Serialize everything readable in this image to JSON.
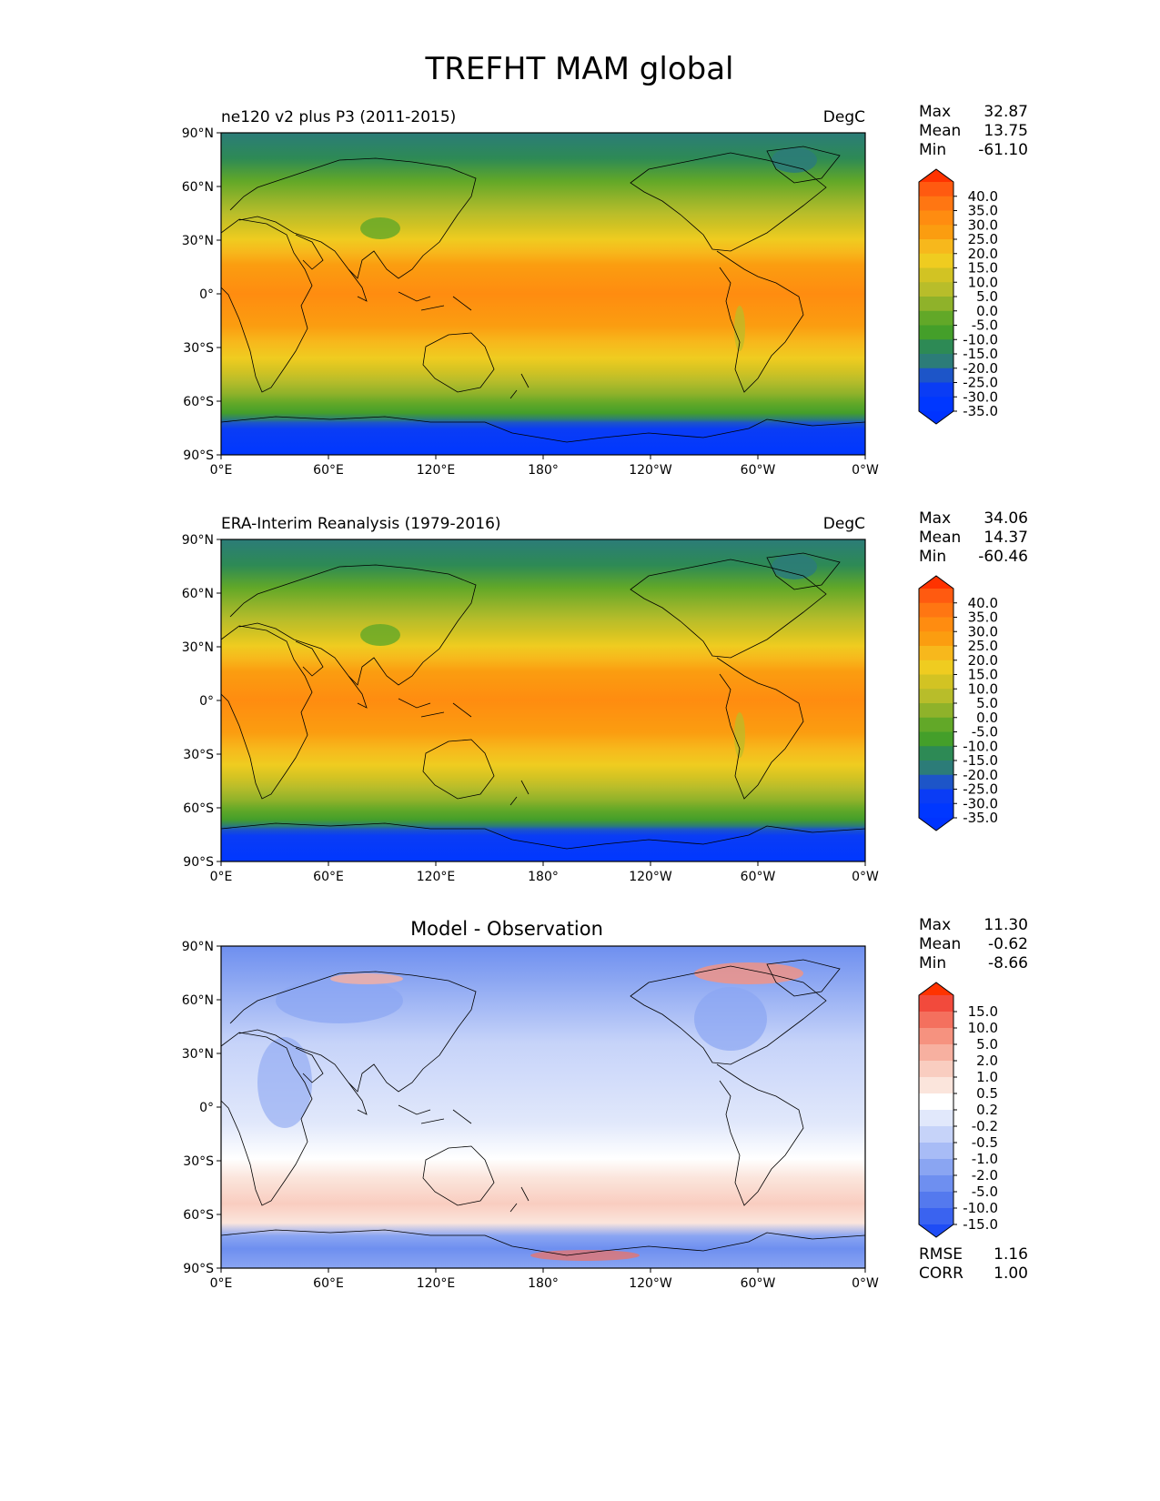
{
  "title": "TREFHT MAM global",
  "panels": [
    {
      "name": "model",
      "left_title": "ne120 v2 plus P3 (2011-2015)",
      "center_title": "",
      "units": "DegC",
      "stats": [
        {
          "label": "Max",
          "value": "32.87"
        },
        {
          "label": "Mean",
          "value": "13.75"
        },
        {
          "label": "Min",
          "value": "-61.10"
        }
      ],
      "colorbar": "abs"
    },
    {
      "name": "observation",
      "left_title": "ERA-Interim Reanalysis (1979-2016)",
      "center_title": "",
      "units": "DegC",
      "stats": [
        {
          "label": "Max",
          "value": "34.06"
        },
        {
          "label": "Mean",
          "value": "14.37"
        },
        {
          "label": "Min",
          "value": "-60.46"
        }
      ],
      "colorbar": "abs"
    },
    {
      "name": "difference",
      "left_title": "",
      "center_title": "Model - Observation",
      "units": "",
      "stats": [
        {
          "label": "Max",
          "value": "11.30"
        },
        {
          "label": "Mean",
          "value": "-0.62"
        },
        {
          "label": "Min",
          "value": "-8.66"
        }
      ],
      "colorbar": "diff",
      "metrics": [
        {
          "label": "RMSE",
          "value": "1.16"
        },
        {
          "label": "CORR",
          "value": "1.00"
        }
      ]
    }
  ],
  "lat_ticks": [
    "90°N",
    "60°N",
    "30°N",
    "0°",
    "30°S",
    "60°S",
    "90°S"
  ],
  "lon_ticks": [
    "0°E",
    "60°E",
    "120°E",
    "180°",
    "120°W",
    "60°W",
    "0°W"
  ],
  "colorbars": {
    "abs": {
      "labels": [
        "40.0",
        "35.0",
        "30.0",
        "25.0",
        "20.0",
        "15.0",
        "10.0",
        "5.0",
        "0.0",
        "-5.0",
        "-10.0",
        "-15.0",
        "-20.0",
        "-25.0",
        "-30.0",
        "-35.0"
      ],
      "colors": [
        "#ff3300",
        "#ff5a10",
        "#ff7612",
        "#ff8c10",
        "#fb9d10",
        "#f7b81c",
        "#efcc20",
        "#d2c323",
        "#b8bd2a",
        "#8fb22a",
        "#62a828",
        "#449f2a",
        "#2d8a55",
        "#2c7c78",
        "#1d55c8",
        "#0a3cf5",
        "#0037ff",
        "#0033ff"
      ]
    },
    "diff": {
      "labels": [
        "15.0",
        "10.0",
        "5.0",
        "2.0",
        "1.0",
        "0.5",
        "0.2",
        "-0.2",
        "-0.5",
        "-1.0",
        "-2.0",
        "-5.0",
        "-10.0",
        "-15.0"
      ],
      "colors": [
        "#ff3300",
        "#f24a3c",
        "#f4705e",
        "#f6927f",
        "#f7b0a0",
        "#f9cdc0",
        "#fbe5dc",
        "#ffffff",
        "#e1e8fb",
        "#c6d3f9",
        "#a8bcf6",
        "#8aa5f2",
        "#6e8ff0",
        "#5479ee",
        "#3a63f0",
        "#1e4cf5"
      ]
    }
  },
  "field_colors": {
    "abs_zonal": [
      "#0a3cf5",
      "#0a3cf5",
      "#1d55c8",
      "#2c7c78",
      "#449f2a",
      "#62a828",
      "#8fb22a",
      "#b8bd2a",
      "#d2c323",
      "#efcc20",
      "#f7b81c",
      "#fb9d10",
      "#ff8c10",
      "#fb9d10",
      "#f7b81c",
      "#efcc20",
      "#d2c323",
      "#b8bd2a",
      "#8fb22a",
      "#62a828",
      "#2d8a55",
      "#2c7c78"
    ],
    "diff_base": "#c6d3f9"
  }
}
